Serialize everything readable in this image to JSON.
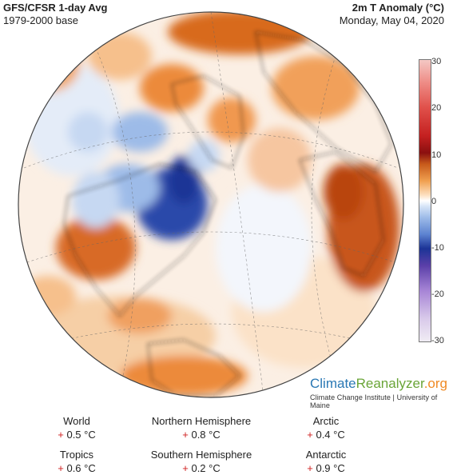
{
  "header": {
    "left_title": "GFS/CFSR 1-day Avg",
    "left_subtitle": "1979-2000 base",
    "right_title": "2m T Anomaly (°C)",
    "right_date": "Monday, May 04, 2020"
  },
  "colorbar": {
    "ticks": [
      "30",
      "20",
      "10",
      "0",
      "-10",
      "-20",
      "-30"
    ],
    "colors": [
      "#f4c8c4",
      "#e0504a",
      "#8a1010",
      "#f0a050",
      "#ffffff",
      "#9dbbe8",
      "#1c3496",
      "#a785d6",
      "#f0ecf4"
    ]
  },
  "branding": {
    "climate": "Climate",
    "reanalyzer": "Reanalyzer",
    "org": ".org",
    "subtitle": "Climate Change Institute | University of Maine"
  },
  "stats": [
    {
      "label": "World",
      "sign": "+",
      "value": "0.5 °C"
    },
    {
      "label": "Northern Hemisphere",
      "sign": "+",
      "value": "0.8 °C"
    },
    {
      "label": "Arctic",
      "sign": "+",
      "value": "0.4 °C"
    },
    {
      "label": "Tropics",
      "sign": "+",
      "value": "0.6 °C"
    },
    {
      "label": "Southern Hemisphere",
      "sign": "+",
      "value": "0.2 °C"
    },
    {
      "label": "Antarctic",
      "sign": "+",
      "value": "0.9 °C"
    }
  ]
}
